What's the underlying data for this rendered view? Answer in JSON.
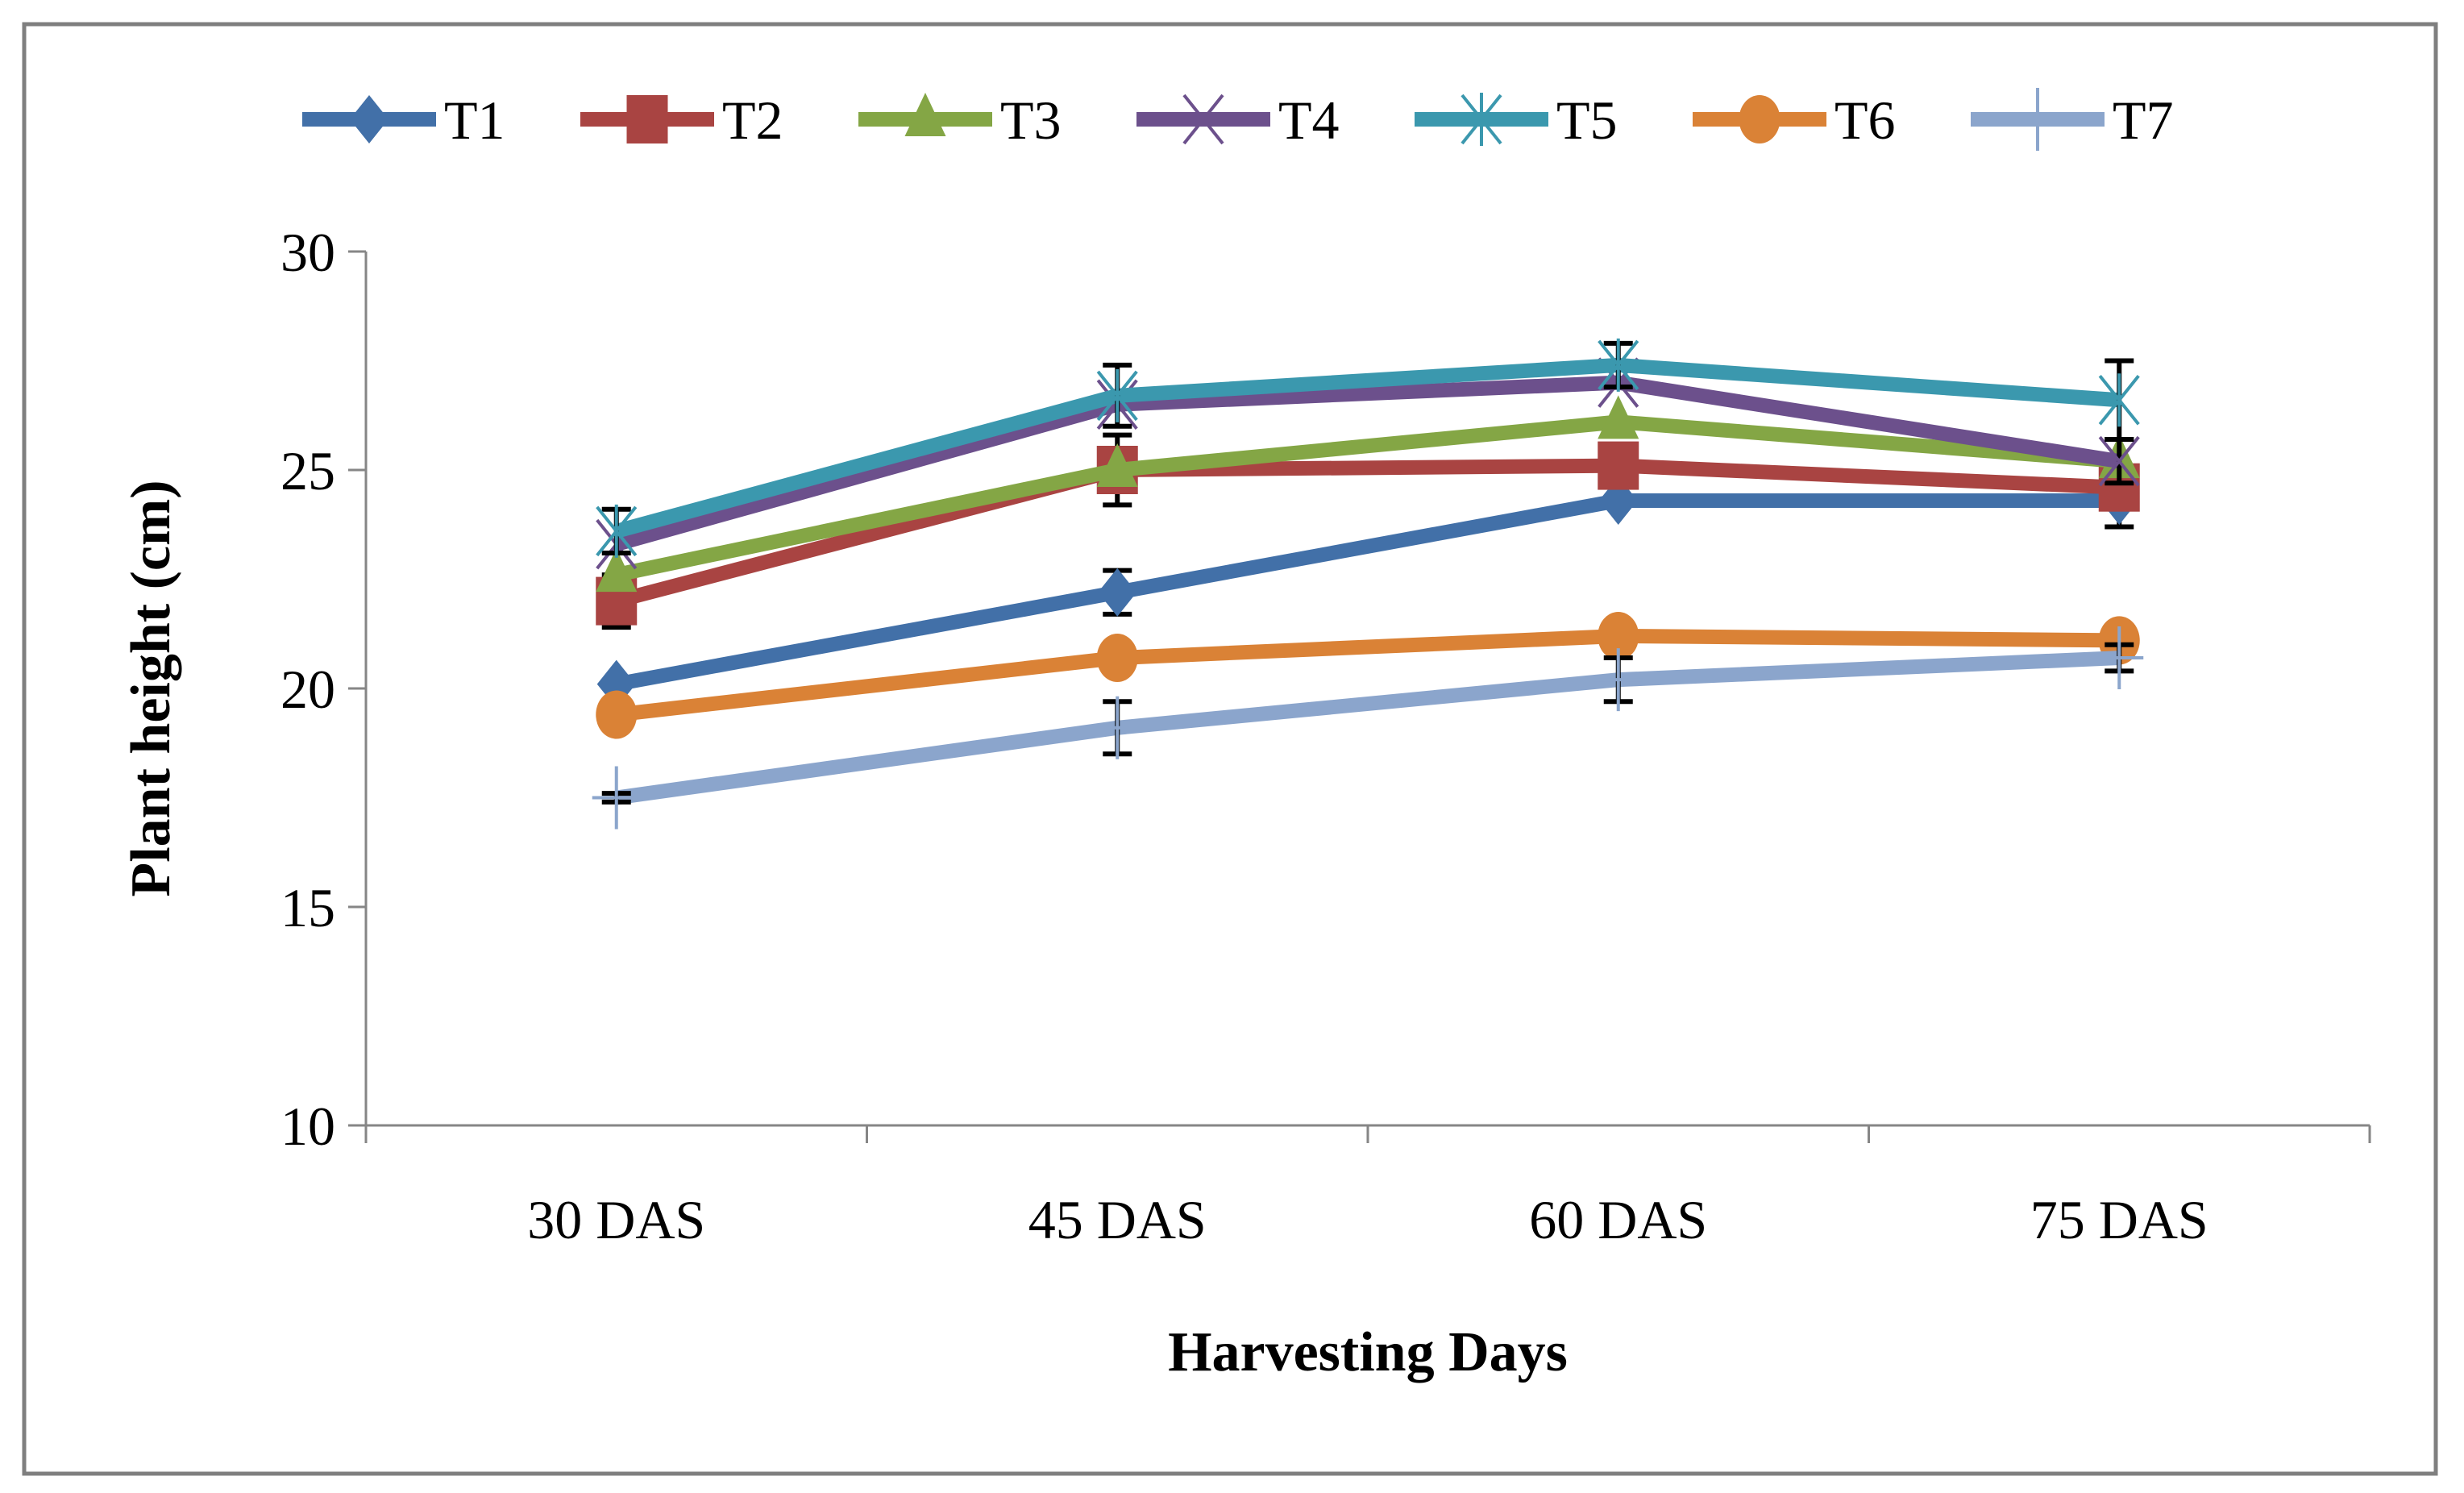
{
  "chart_data": {
    "type": "line",
    "title": "",
    "xlabel": "Harvesting Days",
    "ylabel": "Plant height (cm)",
    "categories": [
      "30 DAS",
      "45 DAS",
      "60 DAS",
      "75 DAS"
    ],
    "ylim": [
      10,
      30
    ],
    "yticks": [
      10,
      15,
      20,
      25,
      30
    ],
    "grid": false,
    "legend_position": "top",
    "series": [
      {
        "name": "T1",
        "color": "#4270a8",
        "marker": "diamond",
        "values": [
          20.1,
          22.2,
          24.3,
          24.3
        ],
        "errors": [
          0,
          0.5,
          0,
          0.6
        ]
      },
      {
        "name": "T2",
        "color": "#a94442",
        "marker": "square",
        "values": [
          22.0,
          25.0,
          25.1,
          24.6
        ],
        "errors": [
          0.6,
          0.8,
          0,
          0
        ]
      },
      {
        "name": "T3",
        "color": "#84a645",
        "marker": "triangle",
        "values": [
          22.6,
          25.0,
          26.1,
          25.2
        ],
        "errors": [
          0,
          0,
          0,
          0
        ]
      },
      {
        "name": "T4",
        "color": "#6c508c",
        "marker": "x",
        "values": [
          23.3,
          26.5,
          27.0,
          25.2
        ],
        "errors": [
          0,
          0,
          0,
          0.5
        ]
      },
      {
        "name": "T5",
        "color": "#3b98ae",
        "marker": "asterisk",
        "values": [
          23.6,
          26.7,
          27.4,
          26.6
        ],
        "errors": [
          0.5,
          0.7,
          0.5,
          0.9
        ]
      },
      {
        "name": "T6",
        "color": "#da8236",
        "marker": "circle",
        "values": [
          19.4,
          20.7,
          21.2,
          21.1
        ],
        "errors": [
          0,
          0,
          0,
          0
        ]
      },
      {
        "name": "T7",
        "color": "#8ba5cc",
        "marker": "plus",
        "values": [
          17.5,
          19.1,
          20.2,
          20.7
        ],
        "errors": [
          0.1,
          0.6,
          0.5,
          0.3
        ]
      }
    ]
  }
}
